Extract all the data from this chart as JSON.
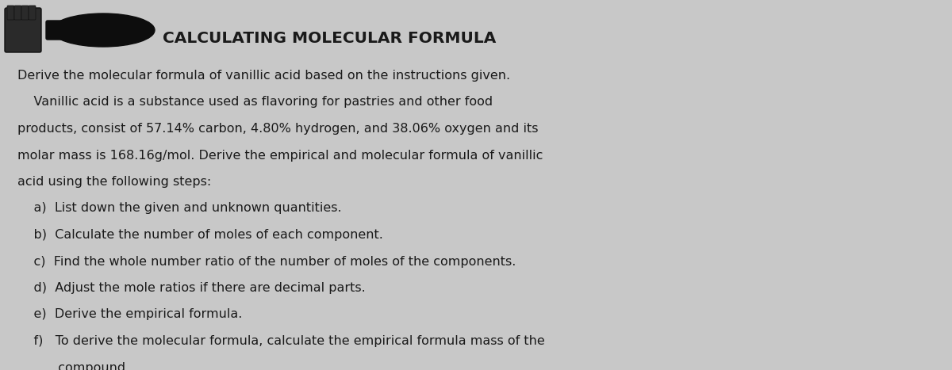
{
  "title": "CALCULATING MOLECULAR FORMULA",
  "background_color": "#c8c8c8",
  "text_color": "#1a1a1a",
  "title_fontsize": 14.5,
  "body_fontsize": 11.5,
  "lines": [
    "Derive the molecular formula of vanillic acid based on the instructions given.",
    "    Vanillic acid is a substance used as flavoring for pastries and other food",
    "products, consist of 57.14% carbon, 4.80% hydrogen, and 38.06% oxygen and its",
    "molar mass is 168.16g/mol. Derive the empirical and molecular formula of vanillic",
    "acid using the following steps:",
    "    a)  List down the given and unknown quantities.",
    "    b)  Calculate the number of moles of each component.",
    "    c)  Find the whole number ratio of the number of moles of the components.",
    "    d)  Adjust the mole ratios if there are decimal parts.",
    "    e)  Derive the empirical formula.",
    "    f)   To derive the molecular formula, calculate the empirical formula mass of the",
    "          compound."
  ],
  "fig_width": 12.0,
  "fig_height": 4.67,
  "dpi": 100
}
